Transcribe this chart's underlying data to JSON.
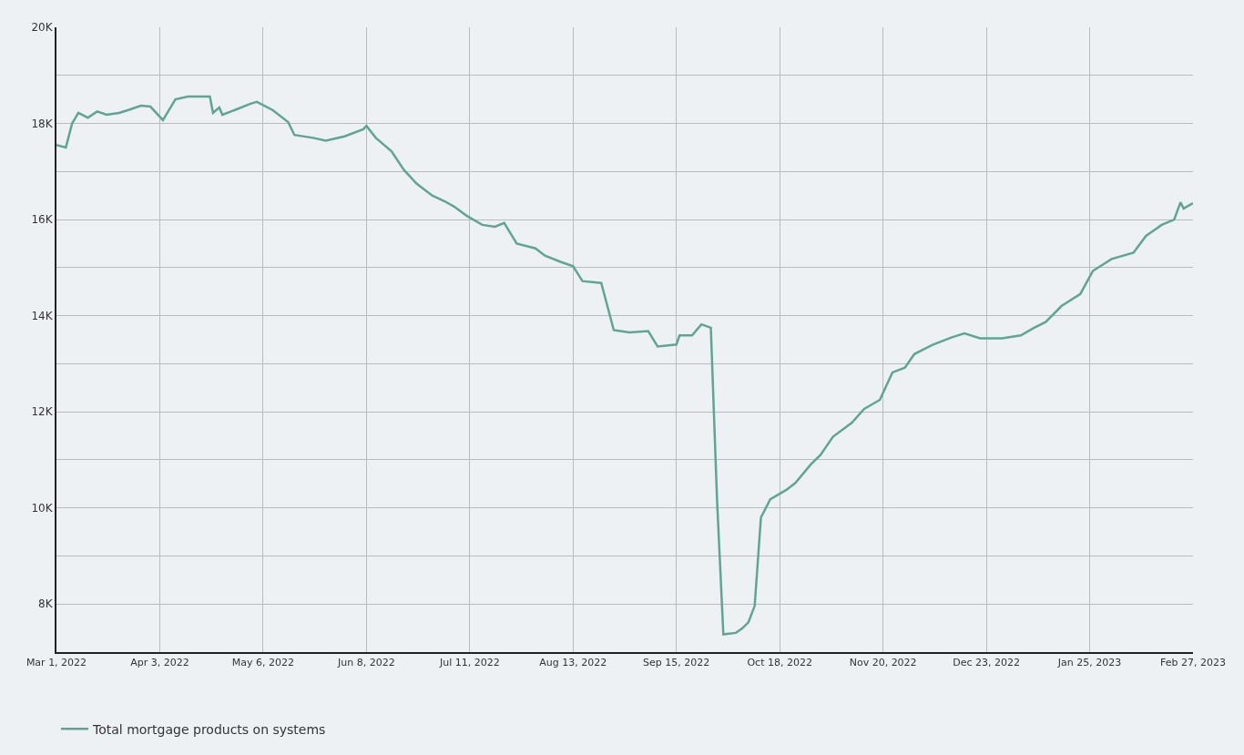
{
  "chart_data": {
    "type": "line",
    "grid": true,
    "legend": "bottom left",
    "marker": "none",
    "line_style": "solid",
    "x": [
      "2022-03-01",
      "2022-03-04",
      "2022-03-06",
      "2022-03-08",
      "2022-03-11",
      "2022-03-14",
      "2022-03-17",
      "2022-03-21",
      "2022-03-24",
      "2022-03-28",
      "2022-03-31",
      "2022-04-04",
      "2022-04-08",
      "2022-04-12",
      "2022-04-19",
      "2022-04-20",
      "2022-04-22",
      "2022-04-23",
      "2022-04-27",
      "2022-05-02",
      "2022-05-04",
      "2022-05-09",
      "2022-05-14",
      "2022-05-16",
      "2022-05-22",
      "2022-05-26",
      "2022-06-01",
      "2022-06-07",
      "2022-06-08",
      "2022-06-11",
      "2022-06-16",
      "2022-06-20",
      "2022-06-24",
      "2022-06-29",
      "2022-07-03",
      "2022-07-06",
      "2022-07-10",
      "2022-07-15",
      "2022-07-19",
      "2022-07-22",
      "2022-07-26",
      "2022-08-01",
      "2022-08-04",
      "2022-08-09",
      "2022-08-13",
      "2022-08-16",
      "2022-08-22",
      "2022-08-26",
      "2022-08-31",
      "2022-09-06",
      "2022-09-09",
      "2022-09-15",
      "2022-09-16",
      "2022-09-20",
      "2022-09-23",
      "2022-09-26",
      "2022-09-28",
      "2022-09-30",
      "2022-10-04",
      "2022-10-06",
      "2022-10-08",
      "2022-10-10",
      "2022-10-12",
      "2022-10-15",
      "2022-10-20",
      "2022-10-23",
      "2022-10-28",
      "2022-10-31",
      "2022-11-04",
      "2022-11-10",
      "2022-11-14",
      "2022-11-19",
      "2022-11-23",
      "2022-11-27",
      "2022-11-30",
      "2022-12-06",
      "2022-12-12",
      "2022-12-16",
      "2022-12-21",
      "2022-12-28",
      "2023-01-03",
      "2023-01-07",
      "2023-01-11",
      "2023-01-16",
      "2023-01-22",
      "2023-01-26",
      "2023-02-01",
      "2023-02-08",
      "2023-02-12",
      "2023-02-17",
      "2023-02-21",
      "2023-02-23",
      "2023-02-24",
      "2023-02-27"
    ],
    "series": [
      {
        "name": "Total mortgage products on systems",
        "color": "#5fa594",
        "values": [
          17550,
          17500,
          18000,
          18220,
          18120,
          18250,
          18180,
          18220,
          18280,
          18370,
          18350,
          18070,
          18500,
          18560,
          18560,
          18220,
          18330,
          18180,
          18280,
          18410,
          18450,
          18280,
          18030,
          17760,
          17700,
          17640,
          17730,
          17880,
          17950,
          17700,
          17420,
          17030,
          16750,
          16500,
          16380,
          16270,
          16080,
          15890,
          15850,
          15930,
          15500,
          15400,
          15250,
          15120,
          15030,
          14720,
          14680,
          13700,
          13650,
          13680,
          13360,
          13400,
          13590,
          13590,
          13820,
          13750,
          10140,
          7370,
          7400,
          7490,
          7620,
          7960,
          9800,
          10180,
          10370,
          10520,
          10910,
          11100,
          11480,
          11770,
          12060,
          12250,
          12820,
          12920,
          13200,
          13400,
          13550,
          13630,
          13530,
          13530,
          13590,
          13740,
          13870,
          14200,
          14450,
          14930,
          15180,
          15310,
          15660,
          15890,
          16000,
          16360,
          16230,
          16340
        ]
      }
    ],
    "xlim": [
      "2022-03-01",
      "2023-02-27"
    ],
    "xticks": [
      {
        "value": "2022-03-01",
        "label": "Mar 1, 2022"
      },
      {
        "value": "2022-04-03",
        "label": "Apr 3, 2022"
      },
      {
        "value": "2022-05-06",
        "label": "May 6, 2022"
      },
      {
        "value": "2022-06-08",
        "label": "Jun 8, 2022"
      },
      {
        "value": "2022-07-11",
        "label": "Jul 11, 2022"
      },
      {
        "value": "2022-08-13",
        "label": "Aug 13, 2022"
      },
      {
        "value": "2022-09-15",
        "label": "Sep 15, 2022"
      },
      {
        "value": "2022-10-18",
        "label": "Oct 18, 2022"
      },
      {
        "value": "2022-11-20",
        "label": "Nov 20, 2022"
      },
      {
        "value": "2022-12-23",
        "label": "Dec 23, 2022"
      },
      {
        "value": "2023-01-25",
        "label": "Jan 25, 2023"
      },
      {
        "value": "2023-02-27",
        "label": "Feb 27, 2023"
      }
    ],
    "ylim": [
      7000,
      20000
    ],
    "yticks": [
      {
        "value": 7000,
        "label": null
      },
      {
        "value": 8000,
        "label": "8K"
      },
      {
        "value": 9000,
        "label": null
      },
      {
        "value": 10000,
        "label": "10K"
      },
      {
        "value": 11000,
        "label": null
      },
      {
        "value": 12000,
        "label": "12K"
      },
      {
        "value": 13000,
        "label": null
      },
      {
        "value": 14000,
        "label": "14K"
      },
      {
        "value": 15000,
        "label": null
      },
      {
        "value": 16000,
        "label": "16K"
      },
      {
        "value": 17000,
        "label": null
      },
      {
        "value": 18000,
        "label": "18K"
      },
      {
        "value": 19000,
        "label": null
      },
      {
        "value": 20000,
        "label": "20K"
      }
    ]
  }
}
